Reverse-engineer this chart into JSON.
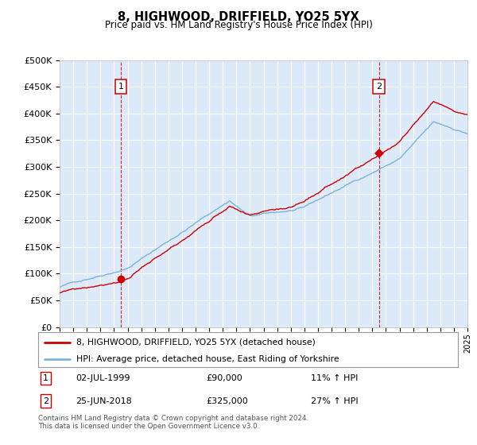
{
  "title": "8, HIGHWOOD, DRIFFIELD, YO25 5YX",
  "subtitle": "Price paid vs. HM Land Registry's House Price Index (HPI)",
  "ytick_labels": [
    "£0",
    "£50K",
    "£100K",
    "£150K",
    "£200K",
    "£250K",
    "£300K",
    "£350K",
    "£400K",
    "£450K",
    "£500K"
  ],
  "yticks": [
    0,
    50000,
    100000,
    150000,
    200000,
    250000,
    300000,
    350000,
    400000,
    450000,
    500000
  ],
  "x_start_year": 1995,
  "x_end_year": 2025,
  "plot_bg": "#dce9f8",
  "grid_color": "#ffffff",
  "hpi_color": "#7ab3d8",
  "price_color": "#cc0000",
  "purchase1_year": 1999.5,
  "purchase1_price": 90000,
  "purchase2_year": 2018.48,
  "purchase2_price": 325000,
  "legend_label1": "8, HIGHWOOD, DRIFFIELD, YO25 5YX (detached house)",
  "legend_label2": "HPI: Average price, detached house, East Riding of Yorkshire",
  "annotation1_date": "02-JUL-1999",
  "annotation1_price": "£90,000",
  "annotation1_hpi": "11% ↑ HPI",
  "annotation2_date": "25-JUN-2018",
  "annotation2_price": "£325,000",
  "annotation2_hpi": "27% ↑ HPI",
  "footer": "Contains HM Land Registry data © Crown copyright and database right 2024.\nThis data is licensed under the Open Government Licence v3.0."
}
